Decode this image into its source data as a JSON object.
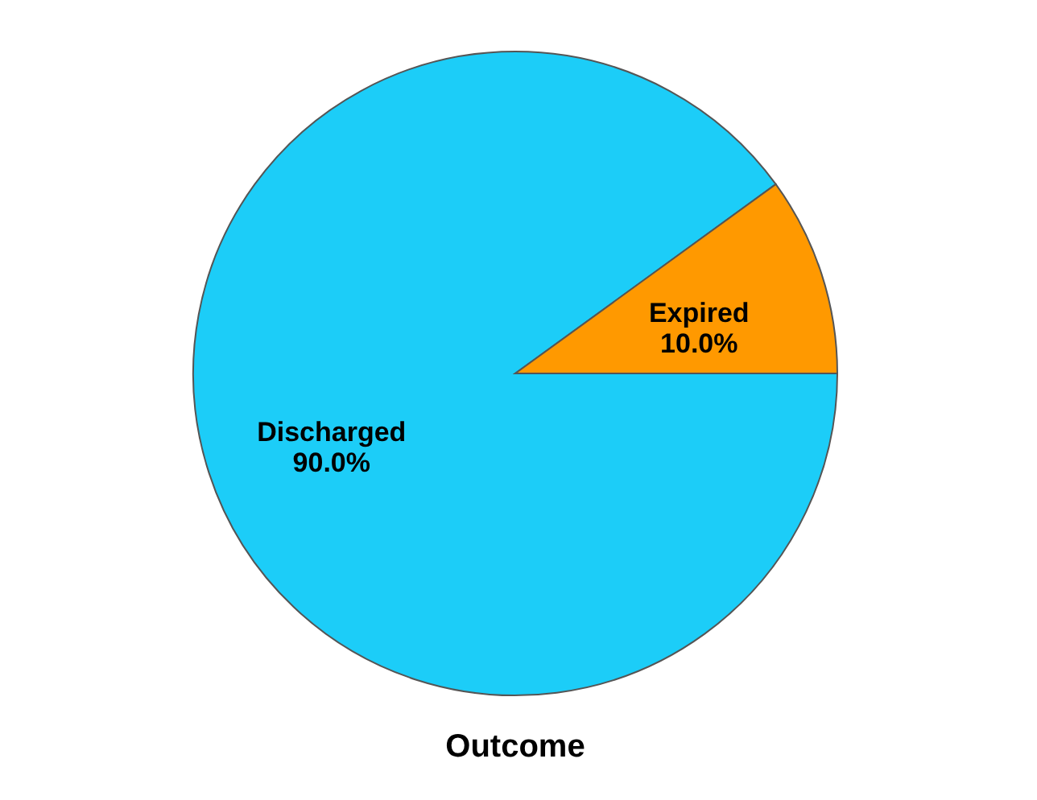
{
  "chart_data": {
    "type": "pie",
    "title": "Outcome",
    "categories": [
      "Discharged",
      "Expired"
    ],
    "values": [
      90,
      10
    ],
    "value_labels": [
      "90.0%",
      "10.0%"
    ],
    "colors": [
      "#1ccdf8",
      "#ff9900"
    ]
  }
}
